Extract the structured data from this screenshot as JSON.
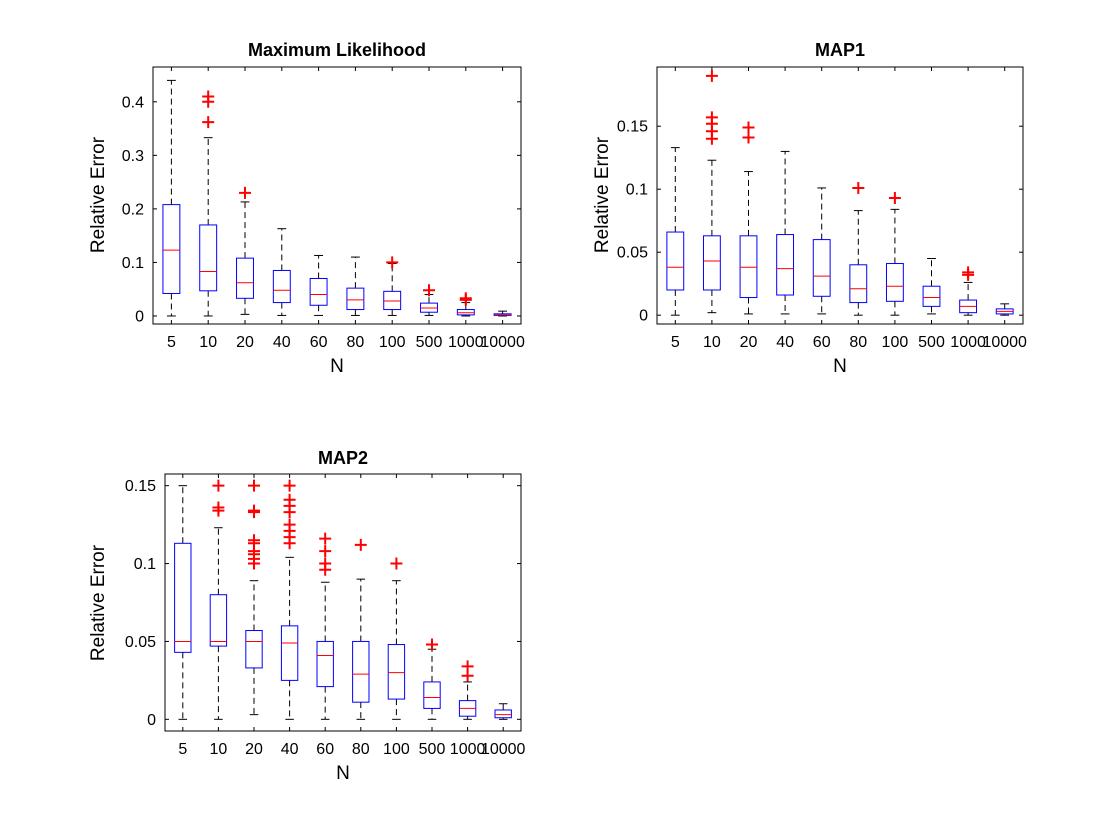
{
  "colors": {
    "box": "#0000ff",
    "median": "#ff0000",
    "outlier": "#ff0000",
    "whisker": "#000000",
    "axis": "#000000"
  },
  "chart_data": [
    {
      "type": "boxplot",
      "title": "Maximum Likelihood",
      "xlabel": "N",
      "ylabel": "Relative Error",
      "categories": [
        "5",
        "10",
        "20",
        "40",
        "60",
        "80",
        "100",
        "500",
        "1000",
        "10000"
      ],
      "ylim": [
        -0.015,
        0.465
      ],
      "yticks": [
        0,
        0.1,
        0.2,
        0.3,
        0.4
      ],
      "ytick_labels": [
        "0",
        "0.1",
        "0.2",
        "0.3",
        "0.4"
      ],
      "grid": false,
      "boxes": [
        {
          "min": 0.0,
          "q1": 0.042,
          "median": 0.123,
          "q3": 0.208,
          "max": 0.44,
          "outliers": []
        },
        {
          "min": 0.0,
          "q1": 0.047,
          "median": 0.083,
          "q3": 0.17,
          "max": 0.333,
          "outliers": [
            0.362,
            0.4,
            0.41
          ]
        },
        {
          "min": 0.003,
          "q1": 0.033,
          "median": 0.062,
          "q3": 0.108,
          "max": 0.213,
          "outliers": [
            0.23
          ]
        },
        {
          "min": 0.001,
          "q1": 0.025,
          "median": 0.048,
          "q3": 0.085,
          "max": 0.163,
          "outliers": []
        },
        {
          "min": 0.001,
          "q1": 0.02,
          "median": 0.04,
          "q3": 0.07,
          "max": 0.113,
          "outliers": []
        },
        {
          "min": 0.001,
          "q1": 0.012,
          "median": 0.03,
          "q3": 0.052,
          "max": 0.11,
          "outliers": []
        },
        {
          "min": 0.001,
          "q1": 0.012,
          "median": 0.028,
          "q3": 0.046,
          "max": 0.098,
          "outliers": [
            0.1
          ]
        },
        {
          "min": 0.001,
          "q1": 0.007,
          "median": 0.015,
          "q3": 0.024,
          "max": 0.04,
          "outliers": [
            0.048
          ]
        },
        {
          "min": 0.0,
          "q1": 0.002,
          "median": 0.006,
          "q3": 0.012,
          "max": 0.025,
          "outliers": [
            0.03,
            0.033
          ]
        },
        {
          "min": 0.0,
          "q1": 0.001,
          "median": 0.002,
          "q3": 0.004,
          "max": 0.009,
          "outliers": []
        }
      ]
    },
    {
      "type": "boxplot",
      "title": "MAP1",
      "xlabel": "N",
      "ylabel": "Relative Error",
      "categories": [
        "5",
        "10",
        "20",
        "40",
        "60",
        "80",
        "100",
        "500",
        "1000",
        "10000"
      ],
      "ylim": [
        -0.007,
        0.197
      ],
      "yticks": [
        0,
        0.05,
        0.1,
        0.15
      ],
      "ytick_labels": [
        "0",
        "0.05",
        "0.1",
        "0.15"
      ],
      "grid": false,
      "boxes": [
        {
          "min": 0.0,
          "q1": 0.02,
          "median": 0.038,
          "q3": 0.066,
          "max": 0.133,
          "outliers": []
        },
        {
          "min": 0.002,
          "q1": 0.02,
          "median": 0.043,
          "q3": 0.063,
          "max": 0.123,
          "outliers": [
            0.14,
            0.146,
            0.152,
            0.157,
            0.19
          ]
        },
        {
          "min": 0.001,
          "q1": 0.014,
          "median": 0.038,
          "q3": 0.063,
          "max": 0.114,
          "outliers": [
            0.141,
            0.149
          ]
        },
        {
          "min": 0.001,
          "q1": 0.016,
          "median": 0.037,
          "q3": 0.064,
          "max": 0.13,
          "outliers": []
        },
        {
          "min": 0.001,
          "q1": 0.015,
          "median": 0.031,
          "q3": 0.06,
          "max": 0.101,
          "outliers": []
        },
        {
          "min": 0.0,
          "q1": 0.01,
          "median": 0.021,
          "q3": 0.04,
          "max": 0.083,
          "outliers": [
            0.101
          ]
        },
        {
          "min": 0.0,
          "q1": 0.011,
          "median": 0.023,
          "q3": 0.041,
          "max": 0.084,
          "outliers": [
            0.093
          ]
        },
        {
          "min": 0.001,
          "q1": 0.007,
          "median": 0.014,
          "q3": 0.023,
          "max": 0.045,
          "outliers": []
        },
        {
          "min": 0.0,
          "q1": 0.002,
          "median": 0.007,
          "q3": 0.012,
          "max": 0.026,
          "outliers": [
            0.032,
            0.034
          ]
        },
        {
          "min": 0.0,
          "q1": 0.001,
          "median": 0.003,
          "q3": 0.005,
          "max": 0.009,
          "outliers": []
        }
      ]
    },
    {
      "type": "boxplot",
      "title": "MAP2",
      "xlabel": "N",
      "ylabel": "Relative Error",
      "categories": [
        "5",
        "10",
        "20",
        "40",
        "60",
        "80",
        "100",
        "500",
        "1000",
        "10000"
      ],
      "ylim": [
        -0.0075,
        0.1575
      ],
      "yticks": [
        0,
        0.05,
        0.1,
        0.15
      ],
      "ytick_labels": [
        "0",
        "0.05",
        "0.1",
        "0.15"
      ],
      "grid": false,
      "boxes": [
        {
          "min": 0.0,
          "q1": 0.043,
          "median": 0.05,
          "q3": 0.113,
          "max": 0.15,
          "outliers": []
        },
        {
          "min": 0.0,
          "q1": 0.047,
          "median": 0.05,
          "q3": 0.08,
          "max": 0.123,
          "outliers": [
            0.134,
            0.136,
            0.15
          ]
        },
        {
          "min": 0.003,
          "q1": 0.033,
          "median": 0.05,
          "q3": 0.057,
          "max": 0.089,
          "outliers": [
            0.1,
            0.103,
            0.106,
            0.108,
            0.113,
            0.115,
            0.133,
            0.134,
            0.15
          ]
        },
        {
          "min": 0.0,
          "q1": 0.025,
          "median": 0.049,
          "q3": 0.06,
          "max": 0.104,
          "outliers": [
            0.113,
            0.117,
            0.121,
            0.125,
            0.133,
            0.137,
            0.141,
            0.15
          ]
        },
        {
          "min": 0.0,
          "q1": 0.021,
          "median": 0.041,
          "q3": 0.05,
          "max": 0.088,
          "outliers": [
            0.096,
            0.1,
            0.108,
            0.116
          ]
        },
        {
          "min": 0.0,
          "q1": 0.011,
          "median": 0.029,
          "q3": 0.05,
          "max": 0.09,
          "outliers": [
            0.112
          ]
        },
        {
          "min": 0.0,
          "q1": 0.013,
          "median": 0.03,
          "q3": 0.048,
          "max": 0.089,
          "outliers": [
            0.1
          ]
        },
        {
          "min": 0.0,
          "q1": 0.007,
          "median": 0.014,
          "q3": 0.024,
          "max": 0.045,
          "outliers": [
            0.048
          ]
        },
        {
          "min": 0.0,
          "q1": 0.002,
          "median": 0.007,
          "q3": 0.012,
          "max": 0.024,
          "outliers": [
            0.028,
            0.034
          ]
        },
        {
          "min": 0.0,
          "q1": 0.001,
          "median": 0.003,
          "q3": 0.006,
          "max": 0.01,
          "outliers": []
        }
      ]
    }
  ]
}
